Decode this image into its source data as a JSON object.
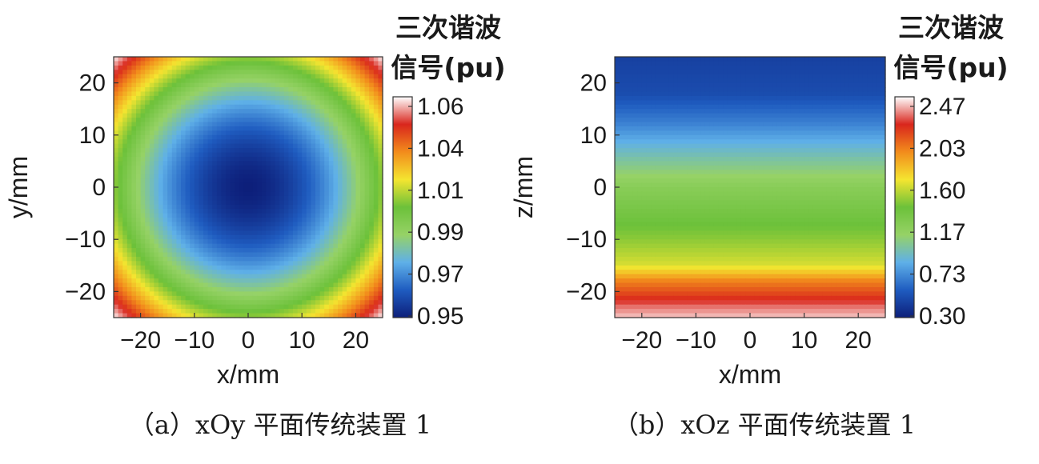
{
  "chart_data": [
    {
      "type": "heatmap",
      "caption": "（a）xOy 平面传统装置 1",
      "xlabel": "x/mm",
      "ylabel": "y/mm",
      "xlim": [
        -25,
        25
      ],
      "ylim": [
        -25,
        25
      ],
      "xticks": [
        -20,
        -10,
        0,
        10,
        20
      ],
      "yticks": [
        -20,
        -10,
        0,
        10,
        20
      ],
      "colorbar": {
        "title_line1": "三次谐波",
        "title_line2": "信号(pu)",
        "min": 0.95,
        "max": 1.06,
        "ticks": [
          "1.06",
          "1.04",
          "1.01",
          "0.99",
          "0.97",
          "0.95"
        ]
      },
      "field": "radial",
      "center_value": 0.95,
      "corner_value": 1.06,
      "colormap": [
        "#0d1f7a",
        "#1f5cc0",
        "#5fb0e8",
        "#96d266",
        "#6cc13a",
        "#f4e530",
        "#f28c1c",
        "#d9261c",
        "#ffffff"
      ]
    },
    {
      "type": "heatmap",
      "caption": "（b）xOz 平面传统装置 1",
      "xlabel": "x/mm",
      "ylabel": "z/mm",
      "xlim": [
        -25,
        25
      ],
      "ylim": [
        -25,
        25
      ],
      "xticks": [
        -20,
        -10,
        0,
        10,
        20
      ],
      "yticks": [
        -20,
        -10,
        0,
        10,
        20
      ],
      "colorbar": {
        "title_line1": "三次谐波",
        "title_line2": "信号(pu)",
        "min": 0.3,
        "max": 2.47,
        "ticks": [
          "2.47",
          "2.03",
          "1.60",
          "1.17",
          "0.73",
          "0.30"
        ]
      },
      "field": "vertical",
      "profile_z": [
        25,
        18,
        12,
        5,
        0,
        -10,
        -15,
        -18,
        -21,
        -23,
        -25
      ],
      "profile_values": [
        0.45,
        0.5,
        0.7,
        1.0,
        1.2,
        1.45,
        1.6,
        1.95,
        2.15,
        2.3,
        2.4
      ],
      "colormap": [
        "#0d1f7a",
        "#1f5cc0",
        "#5fb0e8",
        "#96d266",
        "#6cc13a",
        "#f4e530",
        "#f28c1c",
        "#d9261c",
        "#ffffff"
      ]
    }
  ]
}
